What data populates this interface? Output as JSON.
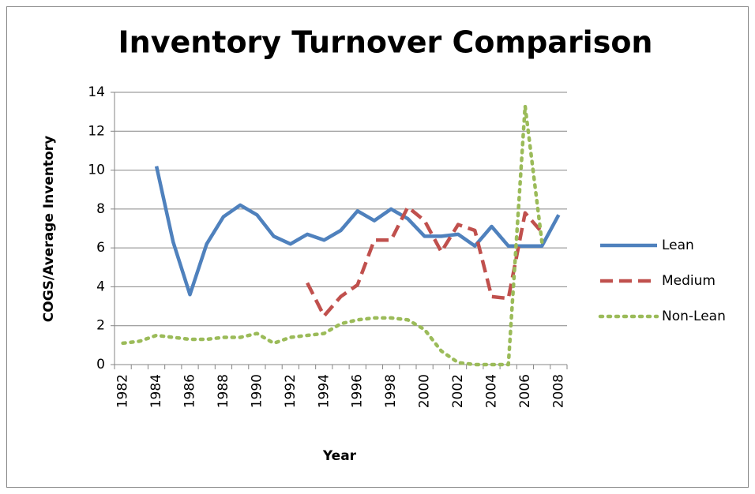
{
  "chart_data": {
    "type": "line",
    "title": "Inventory Turnover Comparison",
    "x_label": "Year",
    "y_label": "COGS/Average Inventory",
    "categories": [
      "1982",
      null,
      "1984",
      null,
      "1986",
      null,
      "1988",
      null,
      "1990",
      null,
      "1992",
      null,
      "1994",
      null,
      "1996",
      null,
      "1998",
      null,
      "2000",
      null,
      "2002",
      null,
      "2004",
      null,
      "2006",
      null,
      "2008"
    ],
    "series": [
      {
        "name": "Lean",
        "color": "#4f81bd",
        "style": "solid",
        "values": [
          null,
          null,
          10.2,
          6.3,
          3.6,
          6.2,
          7.6,
          8.2,
          7.7,
          6.6,
          6.2,
          6.7,
          6.4,
          6.9,
          7.9,
          7.4,
          8.0,
          7.5,
          6.6,
          6.6,
          6.7,
          6.1,
          7.1,
          6.1,
          6.1,
          6.1,
          7.7
        ]
      },
      {
        "name": "Medium",
        "color": "#c0504d",
        "style": "dashed",
        "values": [
          null,
          null,
          null,
          null,
          null,
          null,
          null,
          null,
          null,
          null,
          null,
          4.2,
          2.5,
          3.5,
          4.1,
          6.4,
          6.4,
          8.1,
          7.4,
          5.8,
          7.2,
          6.9,
          3.5,
          3.4,
          7.8,
          6.8,
          null
        ]
      },
      {
        "name": "Non-Lean",
        "color": "#9bbb59",
        "style": "dotted",
        "values": [
          1.1,
          1.2,
          1.5,
          1.4,
          1.3,
          1.3,
          1.4,
          1.4,
          1.6,
          1.1,
          1.4,
          1.5,
          1.6,
          2.1,
          2.3,
          2.4,
          2.4,
          2.3,
          1.8,
          0.7,
          0.1,
          0.0,
          0.0,
          0.0,
          13.3,
          6.3,
          null
        ]
      }
    ],
    "ylim": [
      0,
      14
    ],
    "yticks": [
      0,
      2,
      4,
      6,
      8,
      10,
      12,
      14
    ],
    "grid": true,
    "legend": "right"
  }
}
